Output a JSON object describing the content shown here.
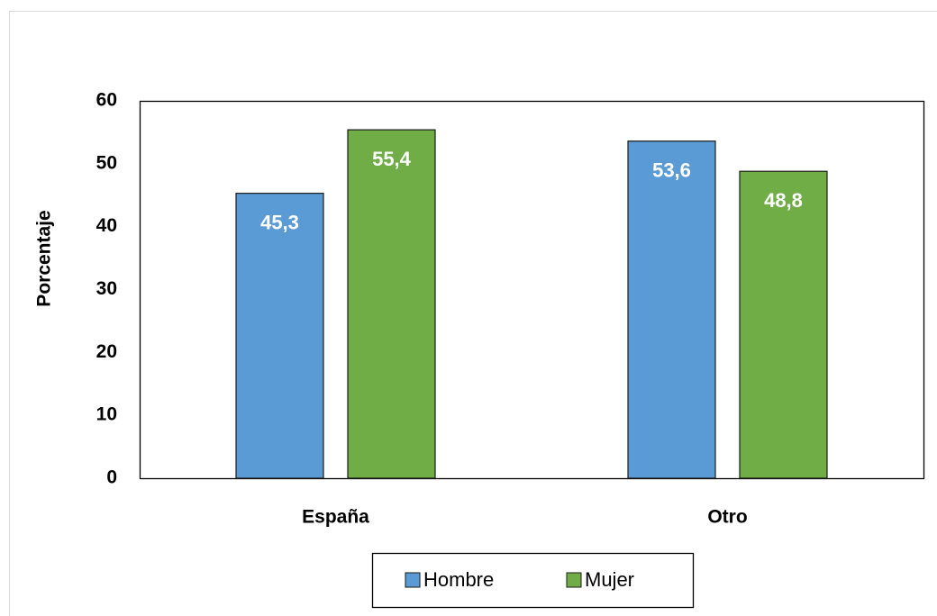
{
  "chart_data": {
    "type": "bar",
    "y_label": "Porcentaje",
    "categories": [
      "España",
      "Otro"
    ],
    "series": [
      {
        "name": "Hombre",
        "color": "#5b9bd5",
        "values": [
          45.3,
          53.6
        ],
        "value_labels": [
          "45,3",
          "53,6"
        ]
      },
      {
        "name": "Mujer",
        "color": "#70ad47",
        "values": [
          55.4,
          48.8
        ],
        "value_labels": [
          "55,4",
          "48,8"
        ]
      }
    ],
    "ylim": [
      0,
      60
    ],
    "yticks": [
      0,
      10,
      20,
      30,
      40,
      50,
      60
    ],
    "grid": false,
    "legend": "bottom"
  }
}
